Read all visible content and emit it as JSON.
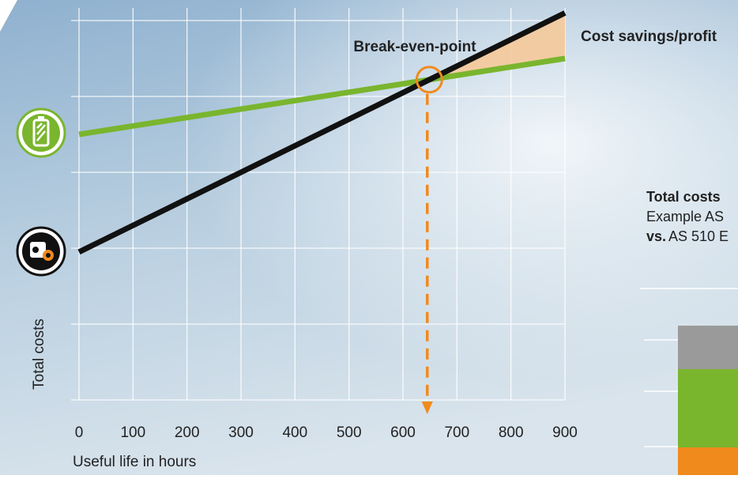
{
  "chart_data": {
    "type": "line",
    "title": "Break-even-point",
    "annotation": "Cost savings/profit",
    "y_label": "Total costs",
    "x_label": "Useful life in hours",
    "x": [
      0,
      900
    ],
    "series": [
      {
        "name": "Battery",
        "color": "#7ab52e",
        "values": [
          3.5,
          4.5
        ]
      },
      {
        "name": "Combustion engine",
        "color": "#111111",
        "values": [
          1.95,
          5.1
        ]
      }
    ],
    "break_even_x": 645,
    "xlim": [
      0,
      900
    ],
    "xticks": [
      0,
      100,
      200,
      300,
      400,
      500,
      600,
      700,
      800,
      900
    ],
    "ylim": [
      0,
      5.2
    ],
    "yticks": [
      0,
      1,
      2,
      3,
      4,
      5
    ],
    "grid": true,
    "fill_color": "#f5c99a",
    "marker_color": "#f08a1c"
  },
  "side_panel": {
    "heading": "Total costs",
    "line1": "Example AS",
    "line2_bold": "vs.",
    "line2": "AS 510 E"
  }
}
